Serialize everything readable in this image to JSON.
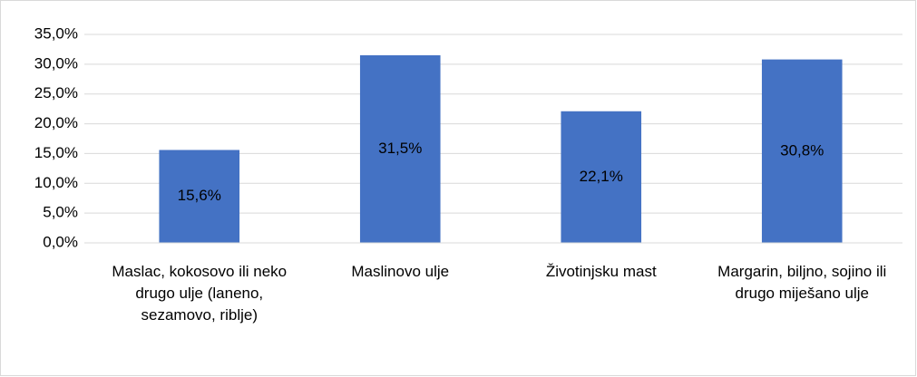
{
  "chart_data": {
    "type": "bar",
    "categories": [
      "Maslac, kokosovo ili neko drugo ulje (laneno, sezamovo, riblje)",
      "Maslinovo ulje",
      "Životinjsku mast",
      "Margarin, biljno, sojino ili drugo miješano ulje"
    ],
    "values": [
      15.6,
      31.5,
      22.1,
      30.8
    ],
    "value_labels": [
      "15,6%",
      "31,5%",
      "22,1%",
      "30,8%"
    ],
    "color": "#4472c4",
    "ylim": [
      0,
      35
    ],
    "yticks": [
      {
        "value": 0,
        "label": "0,0%"
      },
      {
        "value": 5,
        "label": "5,0%"
      },
      {
        "value": 10,
        "label": "10,0%"
      },
      {
        "value": 15,
        "label": "15,0%"
      },
      {
        "value": 20,
        "label": "20,0%"
      },
      {
        "value": 25,
        "label": "25,0%"
      },
      {
        "value": 30,
        "label": "30,0%"
      },
      {
        "value": 35,
        "label": "35,0%"
      }
    ],
    "grid": true
  }
}
